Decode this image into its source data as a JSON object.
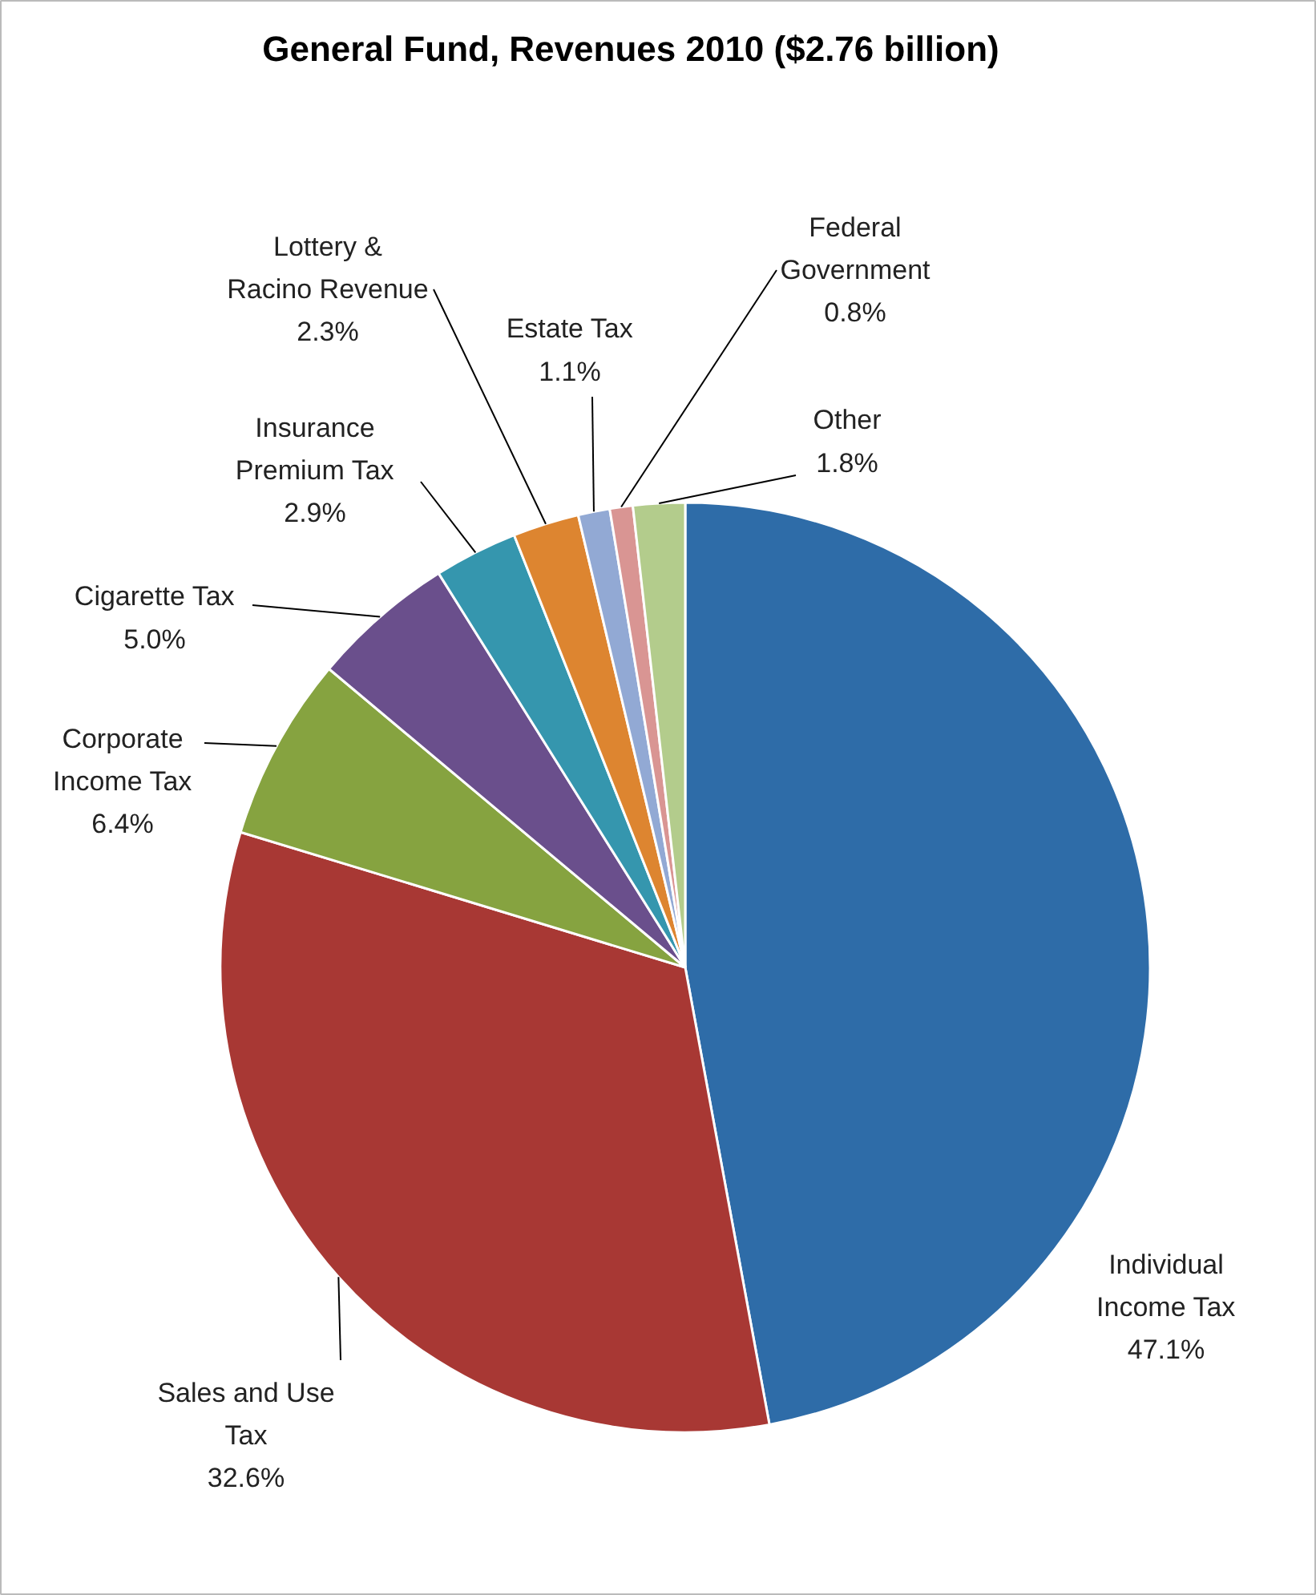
{
  "chart_data": {
    "type": "pie",
    "title": "General Fund, Revenues 2010 ($2.76 billion)",
    "categories": [
      "Individual Income Tax",
      "Sales and Use Tax",
      "Corporate Income Tax",
      "Cigarette Tax",
      "Insurance Premium Tax",
      "Lottery & Racino Revenue",
      "Estate Tax",
      "Federal Government",
      "Other"
    ],
    "values": [
      47.1,
      32.6,
      6.4,
      5.0,
      2.9,
      2.3,
      1.1,
      0.8,
      1.8
    ],
    "value_labels": [
      "47.1%",
      "32.6%",
      "6.4%",
      "5.0%",
      "2.9%",
      "2.3%",
      "1.1%",
      "0.8%",
      "1.8%"
    ],
    "colors": [
      "#2e6ca8",
      "#a83834",
      "#86a340",
      "#6a4f8c",
      "#3596ae",
      "#dd8530",
      "#92a9d4",
      "#d99593",
      "#b3cc8c"
    ]
  }
}
